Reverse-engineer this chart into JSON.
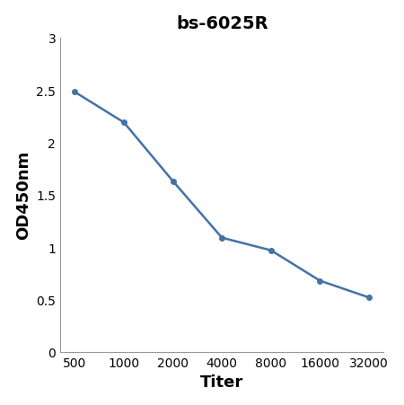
{
  "title": "bs-6025R",
  "xlabel": "Titer",
  "ylabel": "OD450nm",
  "x_positions": [
    0,
    1,
    2,
    3,
    4,
    5,
    6
  ],
  "x_labels": [
    "500",
    "1000",
    "2000",
    "4000",
    "8000",
    "16000",
    "32000"
  ],
  "y_values": [
    2.48,
    2.19,
    1.63,
    1.09,
    0.97,
    0.68,
    0.52
  ],
  "ylim": [
    0,
    3
  ],
  "yticks": [
    0,
    0.5,
    1,
    1.5,
    2,
    2.5,
    3
  ],
  "ytick_labels": [
    "0",
    "0.5",
    "1",
    "1.5",
    "2",
    "2.5",
    "3"
  ],
  "line_color": "#4472a8",
  "marker": "o",
  "marker_size": 4,
  "line_width": 1.8,
  "title_fontsize": 14,
  "axis_label_fontsize": 13,
  "tick_fontsize": 10,
  "background_color": "#ffffff"
}
